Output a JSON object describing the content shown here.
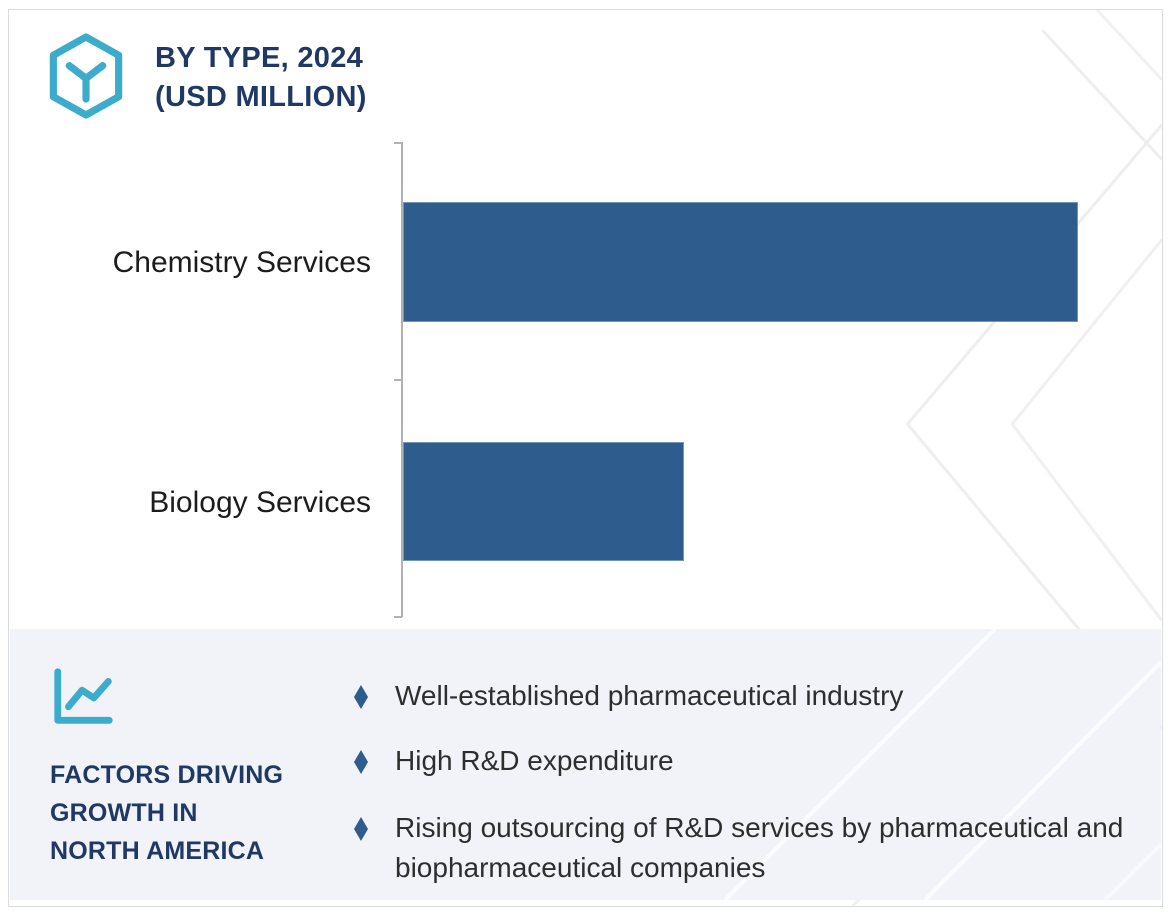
{
  "header": {
    "logo_icon": "hexagon-y-logo",
    "title_line1": "BY TYPE, 2024",
    "title_line2": "(USD MILLION)"
  },
  "chart_data": {
    "type": "bar",
    "orientation": "horizontal",
    "title": "BY TYPE, 2024 (USD MILLION)",
    "categories": [
      "Chemistry Services",
      "Biology Services"
    ],
    "values_relative_pct_of_max": [
      100,
      41.6
    ],
    "value_labels_shown": false,
    "unit": "USD Million",
    "bar_color": "#2e5c8c",
    "axis_line_color": "#b0b2b5",
    "grid": false,
    "legend": false
  },
  "factors_panel": {
    "icon": "trend-line-chart-icon",
    "heading_line1": "FACTORS DRIVING",
    "heading_line2": "GROWTH IN",
    "heading_line3": "NORTH AMERICA",
    "bullet_icon": "diamond-bullet-icon",
    "bullets": [
      {
        "text": "Well-established pharmaceutical industry"
      },
      {
        "text": "High R&D expenditure"
      },
      {
        "text": "Rising outsourcing of R&D services by pharmaceutical and biopharmaceutical companies"
      }
    ]
  },
  "colors": {
    "navy": "#1f3864",
    "teal": "#3caccd",
    "bar_blue": "#2e5c8c",
    "panel_bg": "#f1f3f8",
    "watermark": "#eeeeee"
  }
}
